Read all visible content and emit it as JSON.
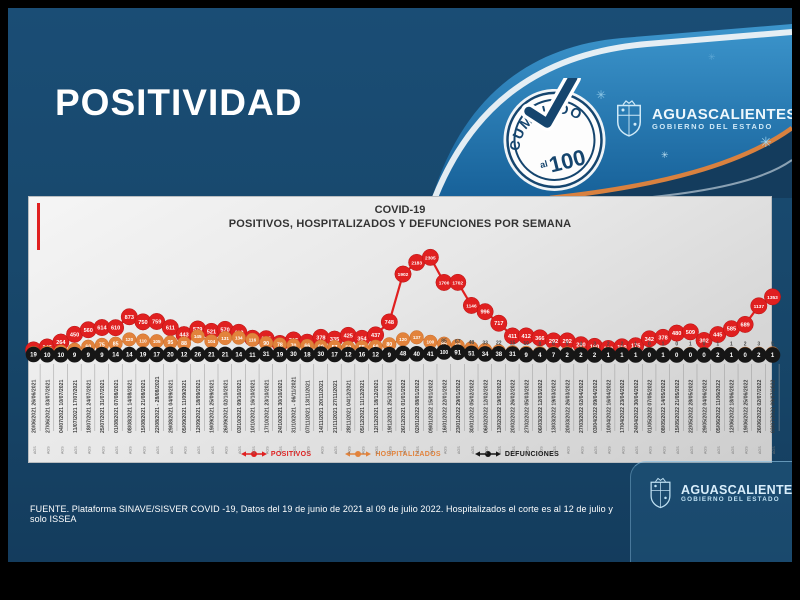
{
  "slide": {
    "title": "POSITIVIDAD"
  },
  "badge": {
    "cumplido": "CUMPLIDO",
    "al": "al",
    "cien": "100"
  },
  "logos": {
    "name": "AGUASCALIENTES",
    "subtitle": "GOBIERNO DEL ESTADO"
  },
  "icons": {
    "virus": "✳",
    "check": "✔"
  },
  "footer": {
    "source": "FUENTE. Plataforma SINAVE/SISVER COVID -19, Datos del 19 de junio de 2021 al 09 de julio 2022.  Hospitalizados el corte es al 12 de julio y solo ISSEA"
  },
  "colors": {
    "slide_bg": "#174669",
    "banner_blue": "#3c95cc",
    "accent_orange": "#d9813f",
    "positivos": "#e02020",
    "hospitalizados": "#e2833c",
    "defunciones": "#161616",
    "card_bg": "#e7e7e7"
  },
  "chart_data": {
    "type": "line",
    "title": "COVID-19",
    "subtitle": "POSITIVOS, HOSPITALIZADOS Y DEFUNCIONES POR SEMANA",
    "legend_position": "bottom",
    "grid": false,
    "tick_note": "AGS",
    "categories": [
      "20/06/2021 26/06/2021",
      "27/06/2021 03/07/2021",
      "04/07/2021 10/07/2021",
      "11/07/2021 17/07/2021",
      "18/07/2021 24/07/2021",
      "25/07/2021 31/07/2021",
      "01/08/2021 07/08/2021",
      "08/08/2021 14/08/2021",
      "15/08/2021 21/08/2021",
      "22/08/2021 - 28/08/2021",
      "29/08/2021 04/09/2021",
      "05/09/2021 11/09/2021",
      "12/09/2021 18/09/2021",
      "19/09/2021 25/09/2021",
      "26/09/2021 02/10/2021",
      "03/10/2021 09/10/2021",
      "10/10/2021 16/10/2021",
      "17/10/2021 23/10/2021",
      "24/10/2021 30/10/2021",
      "31/10/2021 - 06/11/2021",
      "07/11/2021 13/11/2021",
      "14/11/2021 20/11/2021",
      "21/11/2021 27/11/2021",
      "28/11/2021 04/12/2021",
      "05/12/2021 11/12/2021",
      "12/12/2021 18/12/2021",
      "19/12/2021 25/12/2021",
      "26/12/2021 01/01/2022",
      "02/01/2022 08/01/2022",
      "09/01/2022 15/01/2022",
      "16/01/2022 22/01/2022",
      "23/01/2022 29/01/2022",
      "30/01/2022 05/02/2022",
      "06/02/2022 12/02/2022",
      "13/02/2022 19/02/2022",
      "20/02/2022 26/02/2022",
      "27/02/2022 05/03/2022",
      "06/03/2022 12/03/2022",
      "13/03/2022 19/03/2022",
      "20/03/2022 26/03/2022",
      "27/03/2022 02/04/2022",
      "03/04/2022 09/04/2022",
      "10/04/2022 16/04/2022",
      "17/04/2022 23/04/2022",
      "24/04/2022 30/04/2022",
      "01/05/2022 07/05/2022",
      "08/05/2022 14/05/2022",
      "15/05/2022 21/05/2022",
      "22/05/2022 28/05/2022",
      "29/05/2022 04/06/2022",
      "05/06/2022 11/06/2022",
      "12/06/2022 18/06/2022",
      "19/06/2022 25/06/2022",
      "26/06/2022 02/07/2022",
      "03/07/2022 09/07/2022"
    ],
    "series": [
      {
        "name": "POSITIVOS",
        "color": "#e02020",
        "values": [
          75,
          146,
          264,
          450,
          560,
          614,
          610,
          873,
          750,
          759,
          611,
          443,
          579,
          521,
          570,
          499,
          356,
          345,
          230,
          315,
          261,
          378,
          335,
          425,
          354,
          437,
          748,
          1902,
          2183,
          2305,
          1700,
          1702,
          1146,
          996,
          717,
          411,
          412,
          366,
          292,
          292,
          200,
          160,
          109,
          150,
          175,
          342,
          378,
          480,
          509,
          302,
          445,
          585,
          689,
          1137,
          1353
        ]
      },
      {
        "name": "HOSPITALIZADOS",
        "color": "#e2833c",
        "values": [
          8,
          12,
          20,
          35,
          60,
          75,
          85,
          120,
          110,
          105,
          95,
          88,
          145,
          104,
          131,
          134,
          116,
          90,
          78,
          70,
          66,
          60,
          57,
          52,
          55,
          60,
          80,
          120,
          137,
          100,
          85,
          67,
          48,
          33,
          22,
          15,
          10,
          8,
          6,
          5,
          4,
          3,
          2,
          2,
          1,
          0,
          1,
          0,
          1,
          0,
          1,
          1,
          2,
          3,
          5
        ]
      },
      {
        "name": "DEFUNCIONES",
        "color": "#161616",
        "values": [
          19,
          10,
          10,
          9,
          9,
          9,
          14,
          14,
          19,
          17,
          20,
          12,
          26,
          21,
          21,
          14,
          11,
          31,
          19,
          30,
          18,
          30,
          17,
          12,
          16,
          12,
          9,
          48,
          40,
          41,
          100,
          91,
          51,
          34,
          38,
          31,
          9,
          4,
          7,
          2,
          2,
          2,
          1,
          1,
          1,
          0,
          1,
          0,
          0,
          0,
          2,
          1,
          0,
          2,
          1
        ]
      }
    ]
  }
}
